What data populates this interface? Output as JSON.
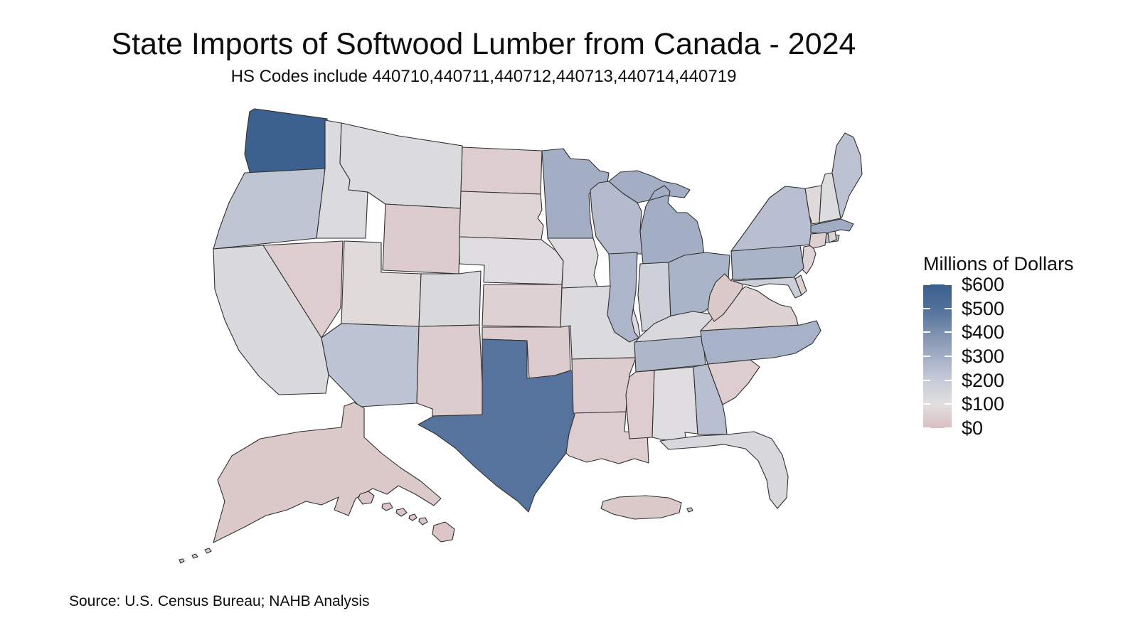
{
  "title": "State Imports of Softwood Lumber from Canada - 2024",
  "subtitle": "HS Codes include 440710,440711,440712,440713,440714,440719",
  "source": "Source: U.S. Census Bureau; NAHB Analysis",
  "legend": {
    "title": "Millions of Dollars",
    "tick_labels": [
      "$600",
      "$500",
      "$400",
      "$300",
      "$200",
      "$100",
      "$0"
    ],
    "min": 0,
    "max": 600,
    "stops": [
      {
        "value": 0,
        "color": "#d9bfc0"
      },
      {
        "value": 100,
        "color": "#e2dfe0"
      },
      {
        "value": 200,
        "color": "#c6cbd7"
      },
      {
        "value": 300,
        "color": "#a3aec5"
      },
      {
        "value": 400,
        "color": "#7d8fae"
      },
      {
        "value": 500,
        "color": "#50709b"
      },
      {
        "value": 600,
        "color": "#3b5f8c"
      }
    ]
  },
  "chart_data": {
    "type": "choropleth",
    "title": "State Imports of Softwood Lumber from Canada - 2024",
    "unit": "millions of US dollars",
    "region": "United States (50 states + Puerto Rico)",
    "color_scale": "pink (low, $0) to dark blue (high, $600)",
    "states": [
      {
        "abbr": "WA",
        "name": "Washington",
        "value": 590
      },
      {
        "abbr": "OR",
        "name": "Oregon",
        "value": 220
      },
      {
        "abbr": "CA",
        "name": "California",
        "value": 130
      },
      {
        "abbr": "NV",
        "name": "Nevada",
        "value": 45
      },
      {
        "abbr": "ID",
        "name": "Idaho",
        "value": 125
      },
      {
        "abbr": "MT",
        "name": "Montana",
        "value": 125
      },
      {
        "abbr": "WY",
        "name": "Wyoming",
        "value": 40
      },
      {
        "abbr": "UT",
        "name": "Utah",
        "value": 85
      },
      {
        "abbr": "CO",
        "name": "Colorado",
        "value": 135
      },
      {
        "abbr": "AZ",
        "name": "Arizona",
        "value": 225
      },
      {
        "abbr": "NM",
        "name": "New Mexico",
        "value": 40
      },
      {
        "abbr": "ND",
        "name": "North Dakota",
        "value": 45
      },
      {
        "abbr": "SD",
        "name": "South Dakota",
        "value": 70
      },
      {
        "abbr": "NE",
        "name": "Nebraska",
        "value": 110
      },
      {
        "abbr": "KS",
        "name": "Kansas",
        "value": 55
      },
      {
        "abbr": "OK",
        "name": "Oklahoma",
        "value": 40
      },
      {
        "abbr": "TX",
        "name": "Texas",
        "value": 490
      },
      {
        "abbr": "MN",
        "name": "Minnesota",
        "value": 300
      },
      {
        "abbr": "IA",
        "name": "Iowa",
        "value": 115
      },
      {
        "abbr": "MO",
        "name": "Missouri",
        "value": 125
      },
      {
        "abbr": "AR",
        "name": "Arkansas",
        "value": 40
      },
      {
        "abbr": "LA",
        "name": "Louisiana",
        "value": 45
      },
      {
        "abbr": "WI",
        "name": "Wisconsin",
        "value": 255
      },
      {
        "abbr": "IL",
        "name": "Illinois",
        "value": 275
      },
      {
        "abbr": "MS",
        "name": "Mississippi",
        "value": 45
      },
      {
        "abbr": "MI",
        "name": "Michigan",
        "value": 300
      },
      {
        "abbr": "IN",
        "name": "Indiana",
        "value": 175
      },
      {
        "abbr": "OH",
        "name": "Ohio",
        "value": 280
      },
      {
        "abbr": "KY",
        "name": "Kentucky",
        "value": 135
      },
      {
        "abbr": "TN",
        "name": "Tennessee",
        "value": 270
      },
      {
        "abbr": "AL",
        "name": "Alabama",
        "value": 110
      },
      {
        "abbr": "GA",
        "name": "Georgia",
        "value": 240
      },
      {
        "abbr": "FL",
        "name": "Florida",
        "value": 140
      },
      {
        "abbr": "SC",
        "name": "South Carolina",
        "value": 45
      },
      {
        "abbr": "NC",
        "name": "North Carolina",
        "value": 290
      },
      {
        "abbr": "VA",
        "name": "Virginia",
        "value": 60
      },
      {
        "abbr": "WV",
        "name": "West Virginia",
        "value": 35
      },
      {
        "abbr": "MD",
        "name": "Maryland",
        "value": 185
      },
      {
        "abbr": "DE",
        "name": "Delaware",
        "value": 55
      },
      {
        "abbr": "NJ",
        "name": "New Jersey",
        "value": 65
      },
      {
        "abbr": "PA",
        "name": "Pennsylvania",
        "value": 280
      },
      {
        "abbr": "NY",
        "name": "New York",
        "value": 240
      },
      {
        "abbr": "VT",
        "name": "Vermont",
        "value": 80
      },
      {
        "abbr": "NH",
        "name": "New Hampshire",
        "value": 120
      },
      {
        "abbr": "ME",
        "name": "Maine",
        "value": 230
      },
      {
        "abbr": "MA",
        "name": "Massachusetts",
        "value": 310
      },
      {
        "abbr": "CT",
        "name": "Connecticut",
        "value": 50
      },
      {
        "abbr": "RI",
        "name": "Rhode Island",
        "value": 55
      },
      {
        "abbr": "AK",
        "name": "Alaska",
        "value": 35
      },
      {
        "abbr": "HI",
        "name": "Hawaii",
        "value": 20
      },
      {
        "abbr": "PR",
        "name": "Puerto Rico",
        "value": 35
      }
    ]
  }
}
